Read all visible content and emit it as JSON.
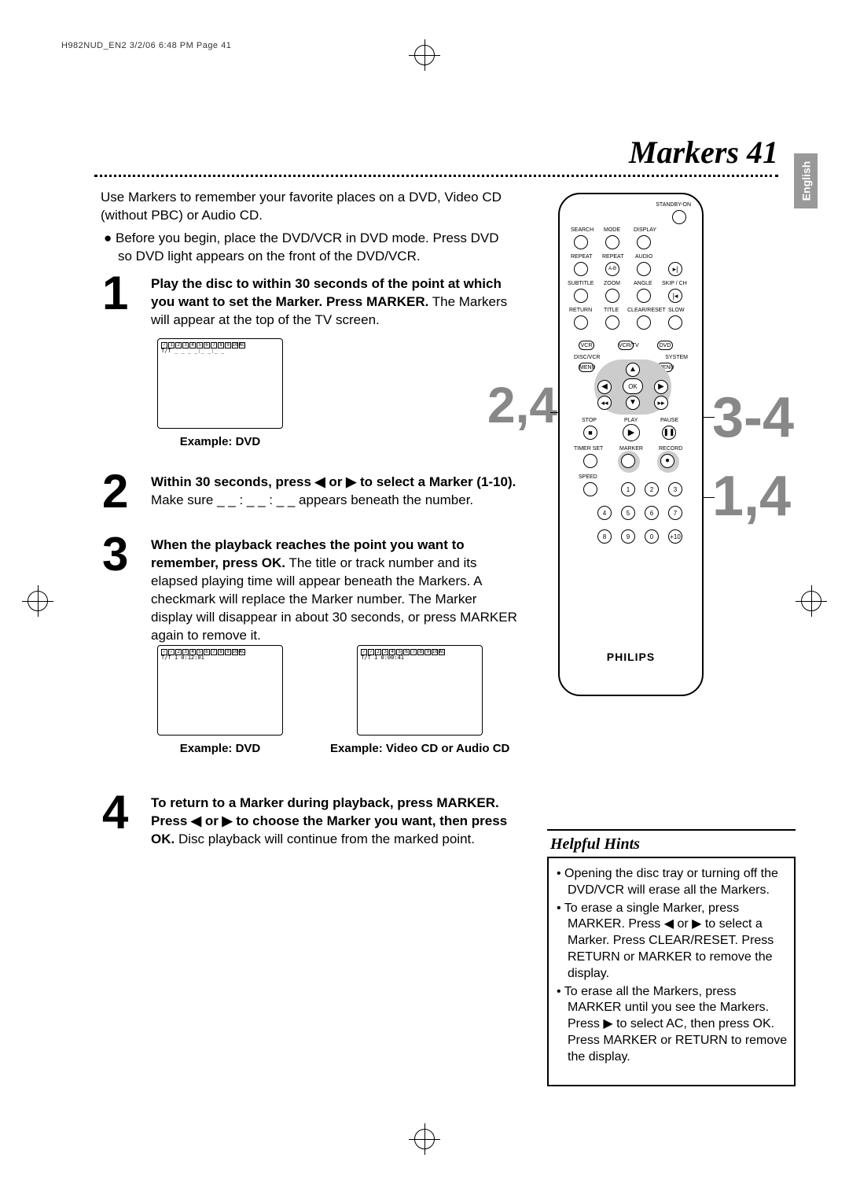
{
  "meta": {
    "header": "H982NUD_EN2  3/2/06  6:48 PM  Page 41"
  },
  "language_tab": "English",
  "page": {
    "title": "Markers  41"
  },
  "intro": {
    "p1": "Use Markers to remember your favorite places on a DVD, Video CD (without PBC) or Audio CD.",
    "b1": "Before you begin, place the DVD/VCR in DVD mode. Press DVD so DVD light appears on the front of the DVD/VCR."
  },
  "steps": {
    "s1": {
      "num": "1",
      "bold": "Play the disc to within 30 seconds of the point at which you want to set the Marker. Press MARKER.",
      "rest": " The Markers will appear at the top of the TV screen.",
      "example_label": "Example: DVD",
      "marker_row": [
        "✓",
        "1",
        "2",
        "3",
        "4",
        "5",
        "6",
        "7",
        "8",
        "9",
        "10",
        "AC"
      ],
      "time_row": "T/T   _ _  _ _:_ _:_ _"
    },
    "s2": {
      "num": "2",
      "bold1": "Within 30 seconds, press ◀ or ▶ to select a Marker (1-10).",
      "rest": " Make sure  _ _ : _ _ : _ _   appears beneath the number."
    },
    "s3": {
      "num": "3",
      "bold": "When the playback reaches the point you want to remember, press OK.",
      "rest": " The title or track number and its elapsed playing time will appear beneath the Markers. A checkmark will replace the Marker number. The Marker display will disappear in about 30 seconds, or press MARKER again to remove it.",
      "exA_label": "Example: DVD",
      "exA_row": [
        "✓",
        "✓",
        "2",
        "3",
        "4",
        "5",
        "6",
        "7",
        "8",
        "9",
        "10",
        "AC"
      ],
      "exA_time": "T/T   1  0:12:01",
      "exB_label": "Example: Video CD or Audio CD",
      "exB_row": [
        "✓",
        "✓",
        "2",
        "3",
        "4",
        "5",
        "6",
        "7",
        "8",
        "9",
        "10",
        "AC"
      ],
      "exB_time": "T/T   1    0:00:41"
    },
    "s4": {
      "num": "4",
      "bold": "To return to a Marker during playback, press MARKER.\nPress ◀ or ▶ to choose the Marker you want, then press OK.",
      "rest": " Disc playback will continue from the marked point."
    }
  },
  "callouts": {
    "a": "2,4",
    "b": "3-4",
    "c": "1,4"
  },
  "remote": {
    "brand": "PHILIPS",
    "labels": {
      "standby": "STANDBY-ON",
      "search": "SEARCH",
      "mode": "MODE",
      "display": "DISPLAY",
      "repeat": "REPEAT",
      "repeat2": "REPEAT",
      "audio": "AUDIO",
      "ab": "A-B",
      "subtitle": "SUBTITLE",
      "zoom": "ZOOM",
      "angle": "ANGLE",
      "skipch": "SKIP / CH",
      "return": "RETURN",
      "title": "TITLE",
      "clear": "CLEAR/RESET",
      "slow": "SLOW",
      "vcr": "VCR",
      "vcrtv": "VCR/TV",
      "dvd": "DVD",
      "discvcr": "DISC/VCR",
      "system": "SYSTEM",
      "menu1": "MENU",
      "menu2": "MENU",
      "ok": "OK",
      "stop": "STOP",
      "play": "PLAY",
      "pause": "PAUSE",
      "timerset": "TIMER SET",
      "marker": "MARKER",
      "record": "RECORD",
      "speed": "SPEED"
    },
    "numpad": [
      "1",
      "2",
      "3",
      "4",
      "5",
      "6",
      "7",
      "8",
      "9",
      "0",
      "+10"
    ]
  },
  "hints": {
    "title": "Helpful Hints",
    "items": [
      "Opening the disc tray or turning off the DVD/VCR will erase all the Markers.",
      "To erase a single Marker, press MARKER. Press ◀ or ▶ to select a Marker. Press CLEAR/RESET. Press RETURN or MARKER to remove the display.",
      "To erase all the Markers, press MARKER until you see the Markers. Press ▶ to select AC, then press OK. Press MARKER or RETURN to remove the display."
    ]
  },
  "style": {
    "callout_color": "#888888",
    "lang_tab_bg": "#999999"
  }
}
